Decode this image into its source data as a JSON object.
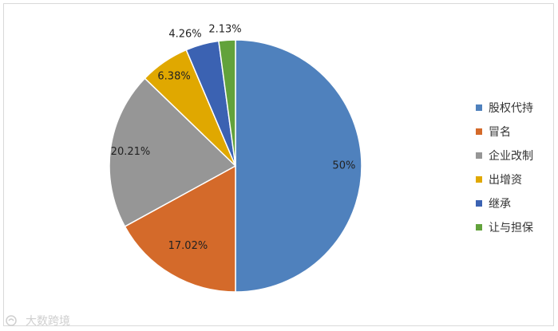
{
  "chart_data": {
    "type": "pie",
    "categories": [
      "股权代持",
      "冒名",
      "企业改制",
      "出增资",
      "继承",
      "让与担保"
    ],
    "values": [
      50,
      17.02,
      20.21,
      6.38,
      4.26,
      2.13
    ],
    "labels": [
      "50%",
      "17.02%",
      "20.21%",
      "6.38%",
      "4.26%",
      "2.13%"
    ],
    "colors": [
      "#4f81bd",
      "#d46a2a",
      "#969696",
      "#e0a800",
      "#3b62b2",
      "#62a23b"
    ],
    "legend_position": "right"
  },
  "watermark": {
    "text": "大数跨境"
  }
}
